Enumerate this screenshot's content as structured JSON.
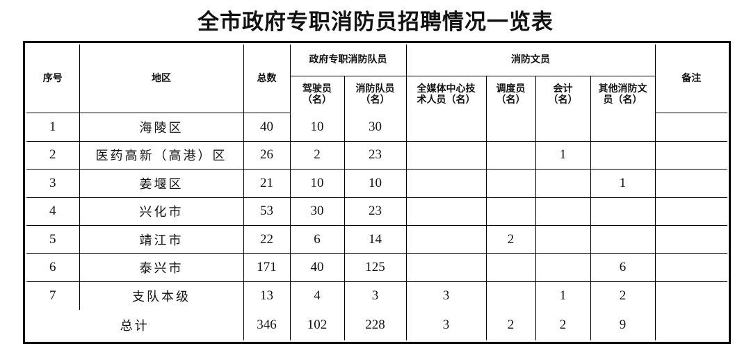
{
  "title": "全市政府专职消防员招聘情况一览表",
  "headers": {
    "seq": "序号",
    "region": "地区",
    "total": "总数",
    "gov_group": "政府专职消防队员",
    "driver": "驾驶员（名）",
    "firefighter": "消防队员（名）",
    "civil_group": "消防文员",
    "media": "全媒体中心技术人员（名）",
    "dispatcher": "调度员（名）",
    "accountant": "会计（名）",
    "other": "其他消防文员（名）",
    "remarks": "备注"
  },
  "rows": [
    {
      "seq": "1",
      "region": "海陵区",
      "total": "40",
      "driver": "10",
      "firefighter": "30",
      "media": "",
      "dispatcher": "",
      "accountant": "",
      "other": "",
      "remarks": ""
    },
    {
      "seq": "2",
      "region": "医药高新（高港）区",
      "total": "26",
      "driver": "2",
      "firefighter": "23",
      "media": "",
      "dispatcher": "",
      "accountant": "1",
      "other": "",
      "remarks": ""
    },
    {
      "seq": "3",
      "region": "姜堰区",
      "total": "21",
      "driver": "10",
      "firefighter": "10",
      "media": "",
      "dispatcher": "",
      "accountant": "",
      "other": "1",
      "remarks": ""
    },
    {
      "seq": "4",
      "region": "兴化市",
      "total": "53",
      "driver": "30",
      "firefighter": "23",
      "media": "",
      "dispatcher": "",
      "accountant": "",
      "other": "",
      "remarks": ""
    },
    {
      "seq": "5",
      "region": "靖江市",
      "total": "22",
      "driver": "6",
      "firefighter": "14",
      "media": "",
      "dispatcher": "2",
      "accountant": "",
      "other": "",
      "remarks": ""
    },
    {
      "seq": "6",
      "region": "泰兴市",
      "total": "171",
      "driver": "40",
      "firefighter": "125",
      "media": "",
      "dispatcher": "",
      "accountant": "",
      "other": "6",
      "remarks": ""
    },
    {
      "seq": "7",
      "region": "支队本级",
      "total": "13",
      "driver": "4",
      "firefighter": "3",
      "media": "3",
      "dispatcher": "",
      "accountant": "1",
      "other": "2",
      "remarks": ""
    }
  ],
  "summary": {
    "label": "总计",
    "total": "346",
    "driver": "102",
    "firefighter": "228",
    "media": "3",
    "dispatcher": "2",
    "accountant": "2",
    "other": "9",
    "remarks": ""
  }
}
